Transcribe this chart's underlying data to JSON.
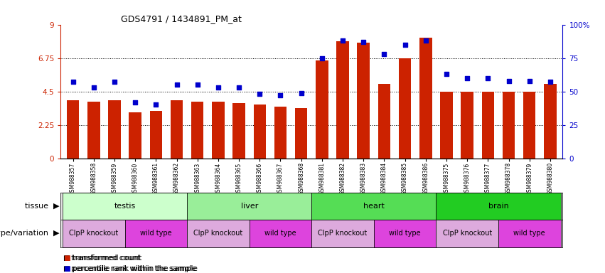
{
  "title": "GDS4791 / 1434891_PM_at",
  "samples": [
    "GSM988357",
    "GSM988358",
    "GSM988359",
    "GSM988360",
    "GSM988361",
    "GSM988362",
    "GSM988363",
    "GSM988364",
    "GSM988365",
    "GSM988366",
    "GSM988367",
    "GSM988368",
    "GSM988381",
    "GSM988382",
    "GSM988383",
    "GSM988384",
    "GSM988385",
    "GSM988386",
    "GSM988375",
    "GSM988376",
    "GSM988377",
    "GSM988378",
    "GSM988379",
    "GSM988380"
  ],
  "bar_values": [
    3.9,
    3.8,
    3.9,
    3.1,
    3.2,
    3.9,
    3.8,
    3.8,
    3.7,
    3.6,
    3.5,
    3.4,
    6.6,
    7.9,
    7.8,
    5.0,
    6.75,
    8.1,
    4.5,
    4.5,
    4.5,
    4.5,
    4.5,
    5.0
  ],
  "dot_values": [
    57,
    53,
    57,
    42,
    40,
    55,
    55,
    53,
    53,
    48,
    47,
    49,
    75,
    88,
    87,
    78,
    85,
    88,
    63,
    60,
    60,
    58,
    58,
    57
  ],
  "ylim_left": [
    0,
    9
  ],
  "ylim_right": [
    0,
    100
  ],
  "yticks_left": [
    0,
    2.25,
    4.5,
    6.75,
    9
  ],
  "yticks_right": [
    0,
    25,
    50,
    75,
    100
  ],
  "ytick_labels_left": [
    "0",
    "2.25",
    "4.5",
    "6.75",
    "9"
  ],
  "ytick_labels_right": [
    "0",
    "25",
    "50",
    "75",
    "100%"
  ],
  "hlines": [
    2.25,
    4.5,
    6.75
  ],
  "bar_color": "#cc2200",
  "dot_color": "#0000cc",
  "bg_color": "#ffffff",
  "tissue_groups": [
    {
      "label": "testis",
      "start": 0,
      "end": 6,
      "color": "#ccffcc"
    },
    {
      "label": "liver",
      "start": 6,
      "end": 12,
      "color": "#99ee99"
    },
    {
      "label": "heart",
      "start": 12,
      "end": 18,
      "color": "#55dd55"
    },
    {
      "label": "brain",
      "start": 18,
      "end": 24,
      "color": "#22cc22"
    }
  ],
  "genotype_groups": [
    {
      "label": "ClpP knockout",
      "start": 0,
      "end": 3,
      "color": "#ddaadd"
    },
    {
      "label": "wild type",
      "start": 3,
      "end": 6,
      "color": "#dd44dd"
    },
    {
      "label": "ClpP knockout",
      "start": 6,
      "end": 9,
      "color": "#ddaadd"
    },
    {
      "label": "wild type",
      "start": 9,
      "end": 12,
      "color": "#dd44dd"
    },
    {
      "label": "ClpP knockout",
      "start": 12,
      "end": 15,
      "color": "#ddaadd"
    },
    {
      "label": "wild type",
      "start": 15,
      "end": 18,
      "color": "#dd44dd"
    },
    {
      "label": "ClpP knockout",
      "start": 18,
      "end": 21,
      "color": "#ddaadd"
    },
    {
      "label": "wild type",
      "start": 21,
      "end": 24,
      "color": "#dd44dd"
    }
  ],
  "tissue_label": "tissue",
  "genotype_label": "genotype/variation",
  "legend_bar": "transformed count",
  "legend_dot": "percentile rank within the sample"
}
